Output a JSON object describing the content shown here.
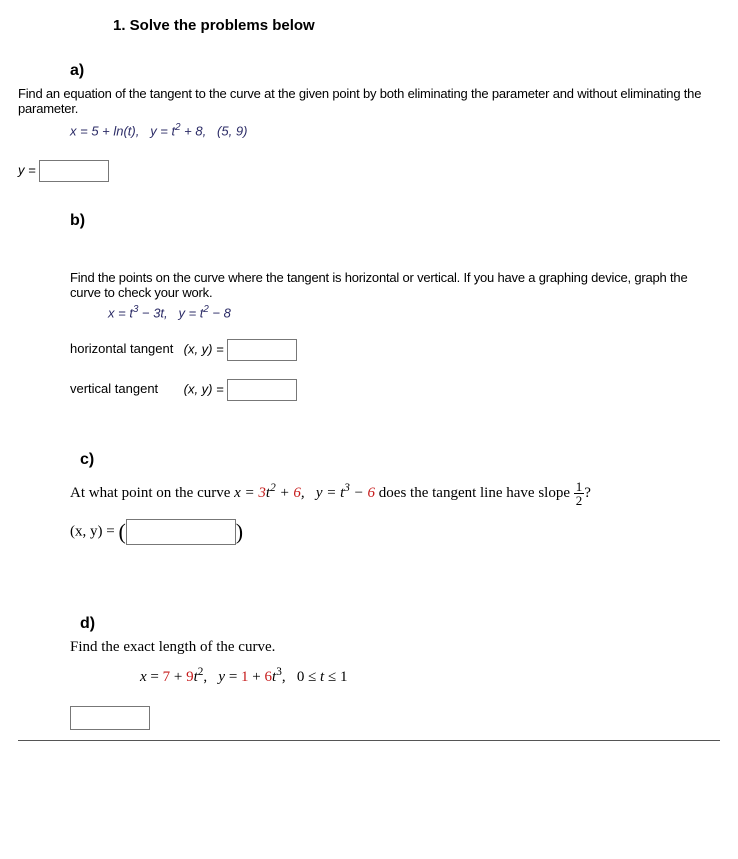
{
  "title": "1. Solve the problems below",
  "a": {
    "label": "a)",
    "prompt": "Find an equation of the tangent to the curve at the given point by both eliminating the parameter and without eliminating the parameter.",
    "eq_html": "x = 5 + ln(t),&nbsp;&nbsp; y = t<sup>2</sup> + 8,&nbsp;&nbsp; (5, 9)",
    "answer_prefix": "y ="
  },
  "b": {
    "label": "b)",
    "prompt": "Find the points on the curve where the tangent is horizontal or vertical. If you have a graphing device, graph the curve to check your work.",
    "eq_html": "x = t<sup>3</sup> − 3t,&nbsp;&nbsp; y = t<sup>2</sup> − 8",
    "h_label": "horizontal tangent",
    "v_label": "vertical tangent",
    "xy": "(x, y) ="
  },
  "c": {
    "label": "c)",
    "prompt_prefix": "At what point on the curve ",
    "eq_x_html": "x = <span class='red'>3</span>t<sup>2</sup> + <span class='red'>6</span>,",
    "eq_y_html": "y = t<sup>3</sup> − <span class='red'>6</span>",
    "prompt_suffix": " does the tangent line have slope ",
    "slope_num": "1",
    "slope_den": "2",
    "answer_prefix": "(x, y) = "
  },
  "d": {
    "label": "d)",
    "prompt": "Find the exact length of the curve.",
    "eq_html": "<span class='var'>x</span> = <span class='red'>7</span> + <span class='red'>9</span><span class='var'>t</span><sup>2</sup>,&nbsp;&nbsp;&nbsp;<span class='var'>y</span> = <span class='red'>1</span> + <span class='red'>6</span><span class='var'>t</span><sup>3</sup>,&nbsp;&nbsp;&nbsp;0 ≤ <span class='var'>t</span> ≤ 1"
  },
  "colors": {
    "text": "#000000",
    "math_purple": "#2b2b66",
    "red": "#c61a1a",
    "input_border": "#777777",
    "background": "#ffffff"
  },
  "typography": {
    "title_fontsize_pt": 11,
    "body_fontsize_pt": 10,
    "serif_fontsize_pt": 11
  }
}
